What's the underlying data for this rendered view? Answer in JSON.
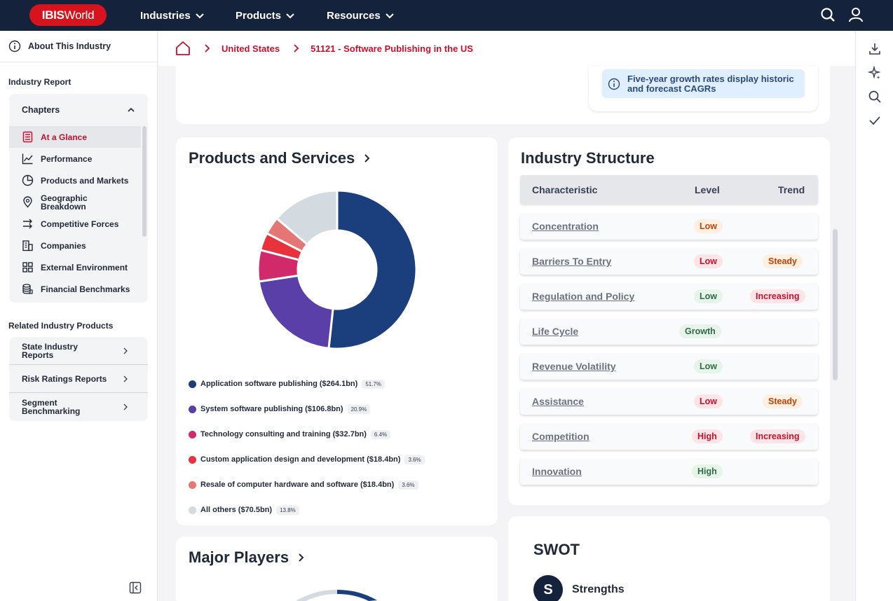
{
  "nav": {
    "logo_bold": "IBIS",
    "logo_rest": "World",
    "menus": [
      "Industries",
      "Products",
      "Resources"
    ]
  },
  "sidebar": {
    "about": "About This Industry",
    "industry_report": "Industry Report",
    "chapters_label": "Chapters",
    "chapters": [
      {
        "label": "At a Glance",
        "icon": "document-list-icon",
        "active": true
      },
      {
        "label": "Performance",
        "icon": "line-chart-icon"
      },
      {
        "label": "Products and Markets",
        "icon": "pie-chart-icon"
      },
      {
        "label": "Geographic Breakdown",
        "icon": "map-pin-icon"
      },
      {
        "label": "Competitive Forces",
        "icon": "arrows-icon"
      },
      {
        "label": "Companies",
        "icon": "building-icon"
      },
      {
        "label": "External Environment",
        "icon": "grid-icon"
      },
      {
        "label": "Financial Benchmarks",
        "icon": "coins-icon"
      }
    ],
    "related_title": "Related Industry Products",
    "related": [
      "State Industry Reports",
      "Risk Ratings Reports",
      "Segment Benchmarking"
    ]
  },
  "breadcrumb": [
    "United States",
    "51121 - Software Publishing in the US"
  ],
  "info_note": "Five-year growth rates display historic and forecast CAGRs",
  "products": {
    "title": "Products and Services",
    "chart_data": {
      "type": "pie",
      "categories": [
        "Application software publishing ($264.1bn)",
        "System software publishing ($106.8bn)",
        "Technology consulting and training ($32.7bn)",
        "Custom application design and development ($18.4bn)",
        "Resale of computer hardware and software ($18.4bn)",
        "All others ($70.5bn)"
      ],
      "values": [
        51.7,
        20.9,
        6.4,
        3.6,
        3.6,
        13.8
      ],
      "labels": [
        "51.7%",
        "20.9%",
        "6.4%",
        "3.6%",
        "3.6%",
        "13.8%"
      ],
      "colors": [
        "#1b3f7c",
        "#5b3fa8",
        "#d12a6a",
        "#e8323c",
        "#e47673",
        "#d3dae0"
      ]
    }
  },
  "structure": {
    "title": "Industry Structure",
    "headers": [
      "Characteristic",
      "Level",
      "Trend"
    ],
    "rows": [
      {
        "name": "Concentration",
        "level": "Low",
        "trend": ""
      },
      {
        "name": "Barriers To Entry",
        "level": "Low",
        "trend": "Steady"
      },
      {
        "name": "Regulation and Policy",
        "level": "Low",
        "trend": "Increasing"
      },
      {
        "name": "Life Cycle",
        "level": "Growth",
        "trend": ""
      },
      {
        "name": "Revenue Volatility",
        "level": "Low",
        "trend": ""
      },
      {
        "name": "Assistance",
        "level": "Low",
        "trend": "Steady"
      },
      {
        "name": "Competition",
        "level": "High",
        "trend": "Increasing"
      },
      {
        "name": "Innovation",
        "level": "High",
        "trend": ""
      }
    ]
  },
  "major_players": {
    "title": "Major Players"
  },
  "swot": {
    "title": "SWOT",
    "letter": "S",
    "strengths": "Strengths"
  }
}
